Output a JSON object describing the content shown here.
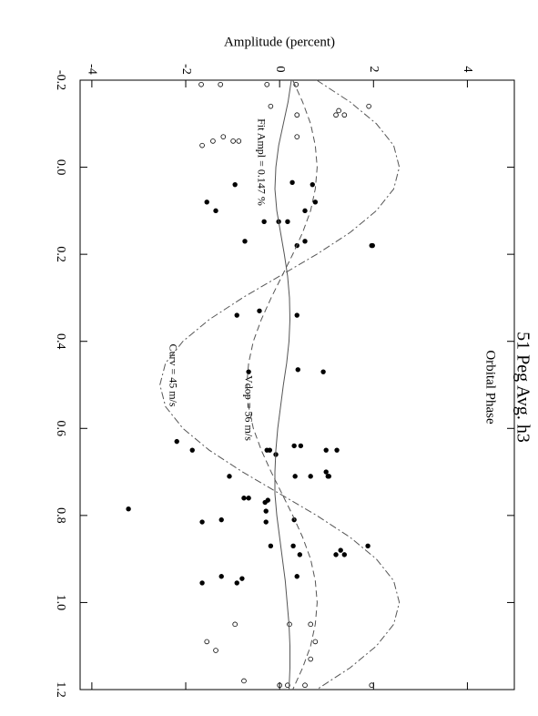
{
  "chart_data": {
    "type": "scatter",
    "title": "51 Peg Avg. h3",
    "x_label": "Orbital Phase",
    "y_label": "Amplitude (percent)",
    "xlim": [
      -0.2,
      1.2
    ],
    "ylim": [
      -4.25,
      5.0
    ],
    "xticks": [
      -0.2,
      {
        "value": 0,
        "label": "0.0"
      },
      0.2,
      0.4,
      0.6,
      0.8,
      {
        "value": 1,
        "label": "1.0"
      },
      1.2
    ],
    "yticks": [
      -4,
      -2,
      0,
      2,
      4
    ],
    "annotations": [
      "Fit Ampl = 0.147 %",
      "Vdop = 56 m/s",
      "Curv = 45 m/s"
    ],
    "series": [
      {
        "marker": "filled",
        "color": "#000000",
        "x": [
          0.04,
          0.035,
          0.04,
          0.08,
          0.08,
          0.1,
          0.1,
          0.125,
          0.125,
          0.125,
          0.17,
          0.18,
          0.17,
          0.18,
          0.18,
          0.34,
          0.33,
          0.34,
          0.47,
          0.465,
          0.47,
          0.63,
          0.65,
          0.64,
          0.64,
          0.65,
          0.65,
          0.66,
          0.65,
          0.65,
          0.71,
          0.71,
          0.71,
          0.7,
          0.71,
          0.71,
          0.76,
          0.76,
          0.77,
          0.765,
          0.785,
          0.79,
          0.81,
          0.815,
          0.81,
          0.87,
          0.815,
          0.87,
          0.87,
          0.89,
          0.88,
          0.89,
          0.89,
          0.94,
          0.94,
          0.945,
          0.955,
          0.955
        ],
        "values": [
          -0.95,
          0.27,
          0.7,
          -1.55,
          0.76,
          -1.36,
          0.54,
          0.17,
          -0.02,
          -0.33,
          0.54,
          0.37,
          -0.74,
          1.96,
          1.98,
          -0.91,
          -0.43,
          0.37,
          -0.66,
          0.39,
          0.93,
          -2.19,
          -1.86,
          0.31,
          0.45,
          -0.27,
          -0.21,
          -0.08,
          0.99,
          1.22,
          0.33,
          -1.07,
          0.66,
          0.99,
          1.03,
          1.05,
          -0.76,
          -0.66,
          -0.31,
          -0.25,
          -3.22,
          -0.29,
          0.31,
          -1.65,
          -1.24,
          1.88,
          -0.29,
          -0.19,
          0.29,
          1.2,
          1.3,
          1.38,
          0.43,
          -1.24,
          0.37,
          -0.8,
          -0.91,
          -1.65
        ]
      },
      {
        "marker": "open",
        "color": "#000000",
        "x": [
          -0.19,
          -0.19,
          -0.19,
          -0.19,
          -0.14,
          -0.12,
          -0.13,
          -0.12,
          -0.12,
          -0.14,
          -0.07,
          -0.07,
          -0.06,
          -0.06,
          -0.06,
          -0.05,
          1.05,
          1.05,
          1.05,
          1.09,
          1.09,
          1.11,
          1.13,
          1.19,
          1.19,
          1.19,
          1.18,
          1.19
        ],
        "values": [
          -1.67,
          -1.26,
          -0.27,
          0.35,
          -0.19,
          0.37,
          1.26,
          1.38,
          1.2,
          1.9,
          0.37,
          -1.2,
          -1.42,
          -0.87,
          -0.99,
          -1.65,
          -0.95,
          0.21,
          0.66,
          -1.55,
          0.76,
          -1.36,
          0.66,
          0,
          0.17,
          0.54,
          -0.76,
          1.96
        ]
      },
      {
        "marker": "line",
        "dash": "solid",
        "color": "#555555",
        "x": [
          -0.2,
          -0.15,
          -0.1,
          -0.05,
          0,
          0.05,
          0.1,
          0.15,
          0.2,
          0.25,
          0.3,
          0.35,
          0.4,
          0.45,
          0.5,
          0.55,
          0.6,
          0.65,
          0.7,
          0.75,
          0.8,
          0.85,
          0.9,
          0.95,
          1,
          1.05,
          1.1,
          1.15,
          1.2
        ],
        "values": [
          0.25,
          0.18,
          0.08,
          -0.02,
          -0.08,
          -0.1,
          -0.06,
          0.02,
          0.1,
          0.17,
          0.21,
          0.22,
          0.2,
          0.15,
          0.08,
          0.02,
          -0.04,
          -0.08,
          -0.1,
          -0.1,
          -0.06,
          0,
          0.06,
          0.12,
          0.16,
          0.2,
          0.22,
          0.22,
          0.2
        ]
      },
      {
        "marker": "line",
        "dash": "dashed",
        "color": "#555555",
        "x": [
          -0.2,
          -0.15,
          -0.1,
          -0.05,
          0,
          0.05,
          0.1,
          0.15,
          0.2,
          0.25,
          0.3,
          0.35,
          0.4,
          0.45,
          0.5,
          0.55,
          0.6,
          0.65,
          0.7,
          0.75,
          0.8,
          0.85,
          0.9,
          0.95,
          1,
          1.05,
          1.1,
          1.15,
          1.2
        ],
        "values": [
          0.28,
          0.49,
          0.66,
          0.76,
          0.8,
          0.76,
          0.66,
          0.49,
          0.28,
          0.05,
          -0.18,
          -0.39,
          -0.56,
          -0.66,
          -0.7,
          -0.66,
          -0.56,
          -0.39,
          -0.18,
          0.05,
          0.28,
          0.49,
          0.66,
          0.76,
          0.8,
          0.76,
          0.66,
          0.49,
          0.28
        ]
      },
      {
        "marker": "line",
        "dash": "dashdot",
        "color": "#555555",
        "x": [
          -0.2,
          -0.15,
          -0.1,
          -0.05,
          0,
          0.05,
          0.1,
          0.15,
          0.2,
          0.25,
          0.3,
          0.35,
          0.4,
          0.45,
          0.5,
          0.55,
          0.6,
          0.65,
          0.7,
          0.75,
          0.8,
          0.85,
          0.9,
          0.95,
          1,
          1.05,
          1.1,
          1.15,
          1.2
        ],
        "values": [
          0.79,
          1.5,
          2.06,
          2.43,
          2.55,
          2.43,
          2.06,
          1.5,
          0.79,
          0,
          -0.79,
          -1.5,
          -2.06,
          -2.43,
          -2.55,
          -2.43,
          -2.06,
          -1.5,
          -0.79,
          0,
          0.79,
          1.5,
          2.06,
          2.43,
          2.55,
          2.43,
          2.06,
          1.5,
          0.79
        ]
      }
    ]
  }
}
